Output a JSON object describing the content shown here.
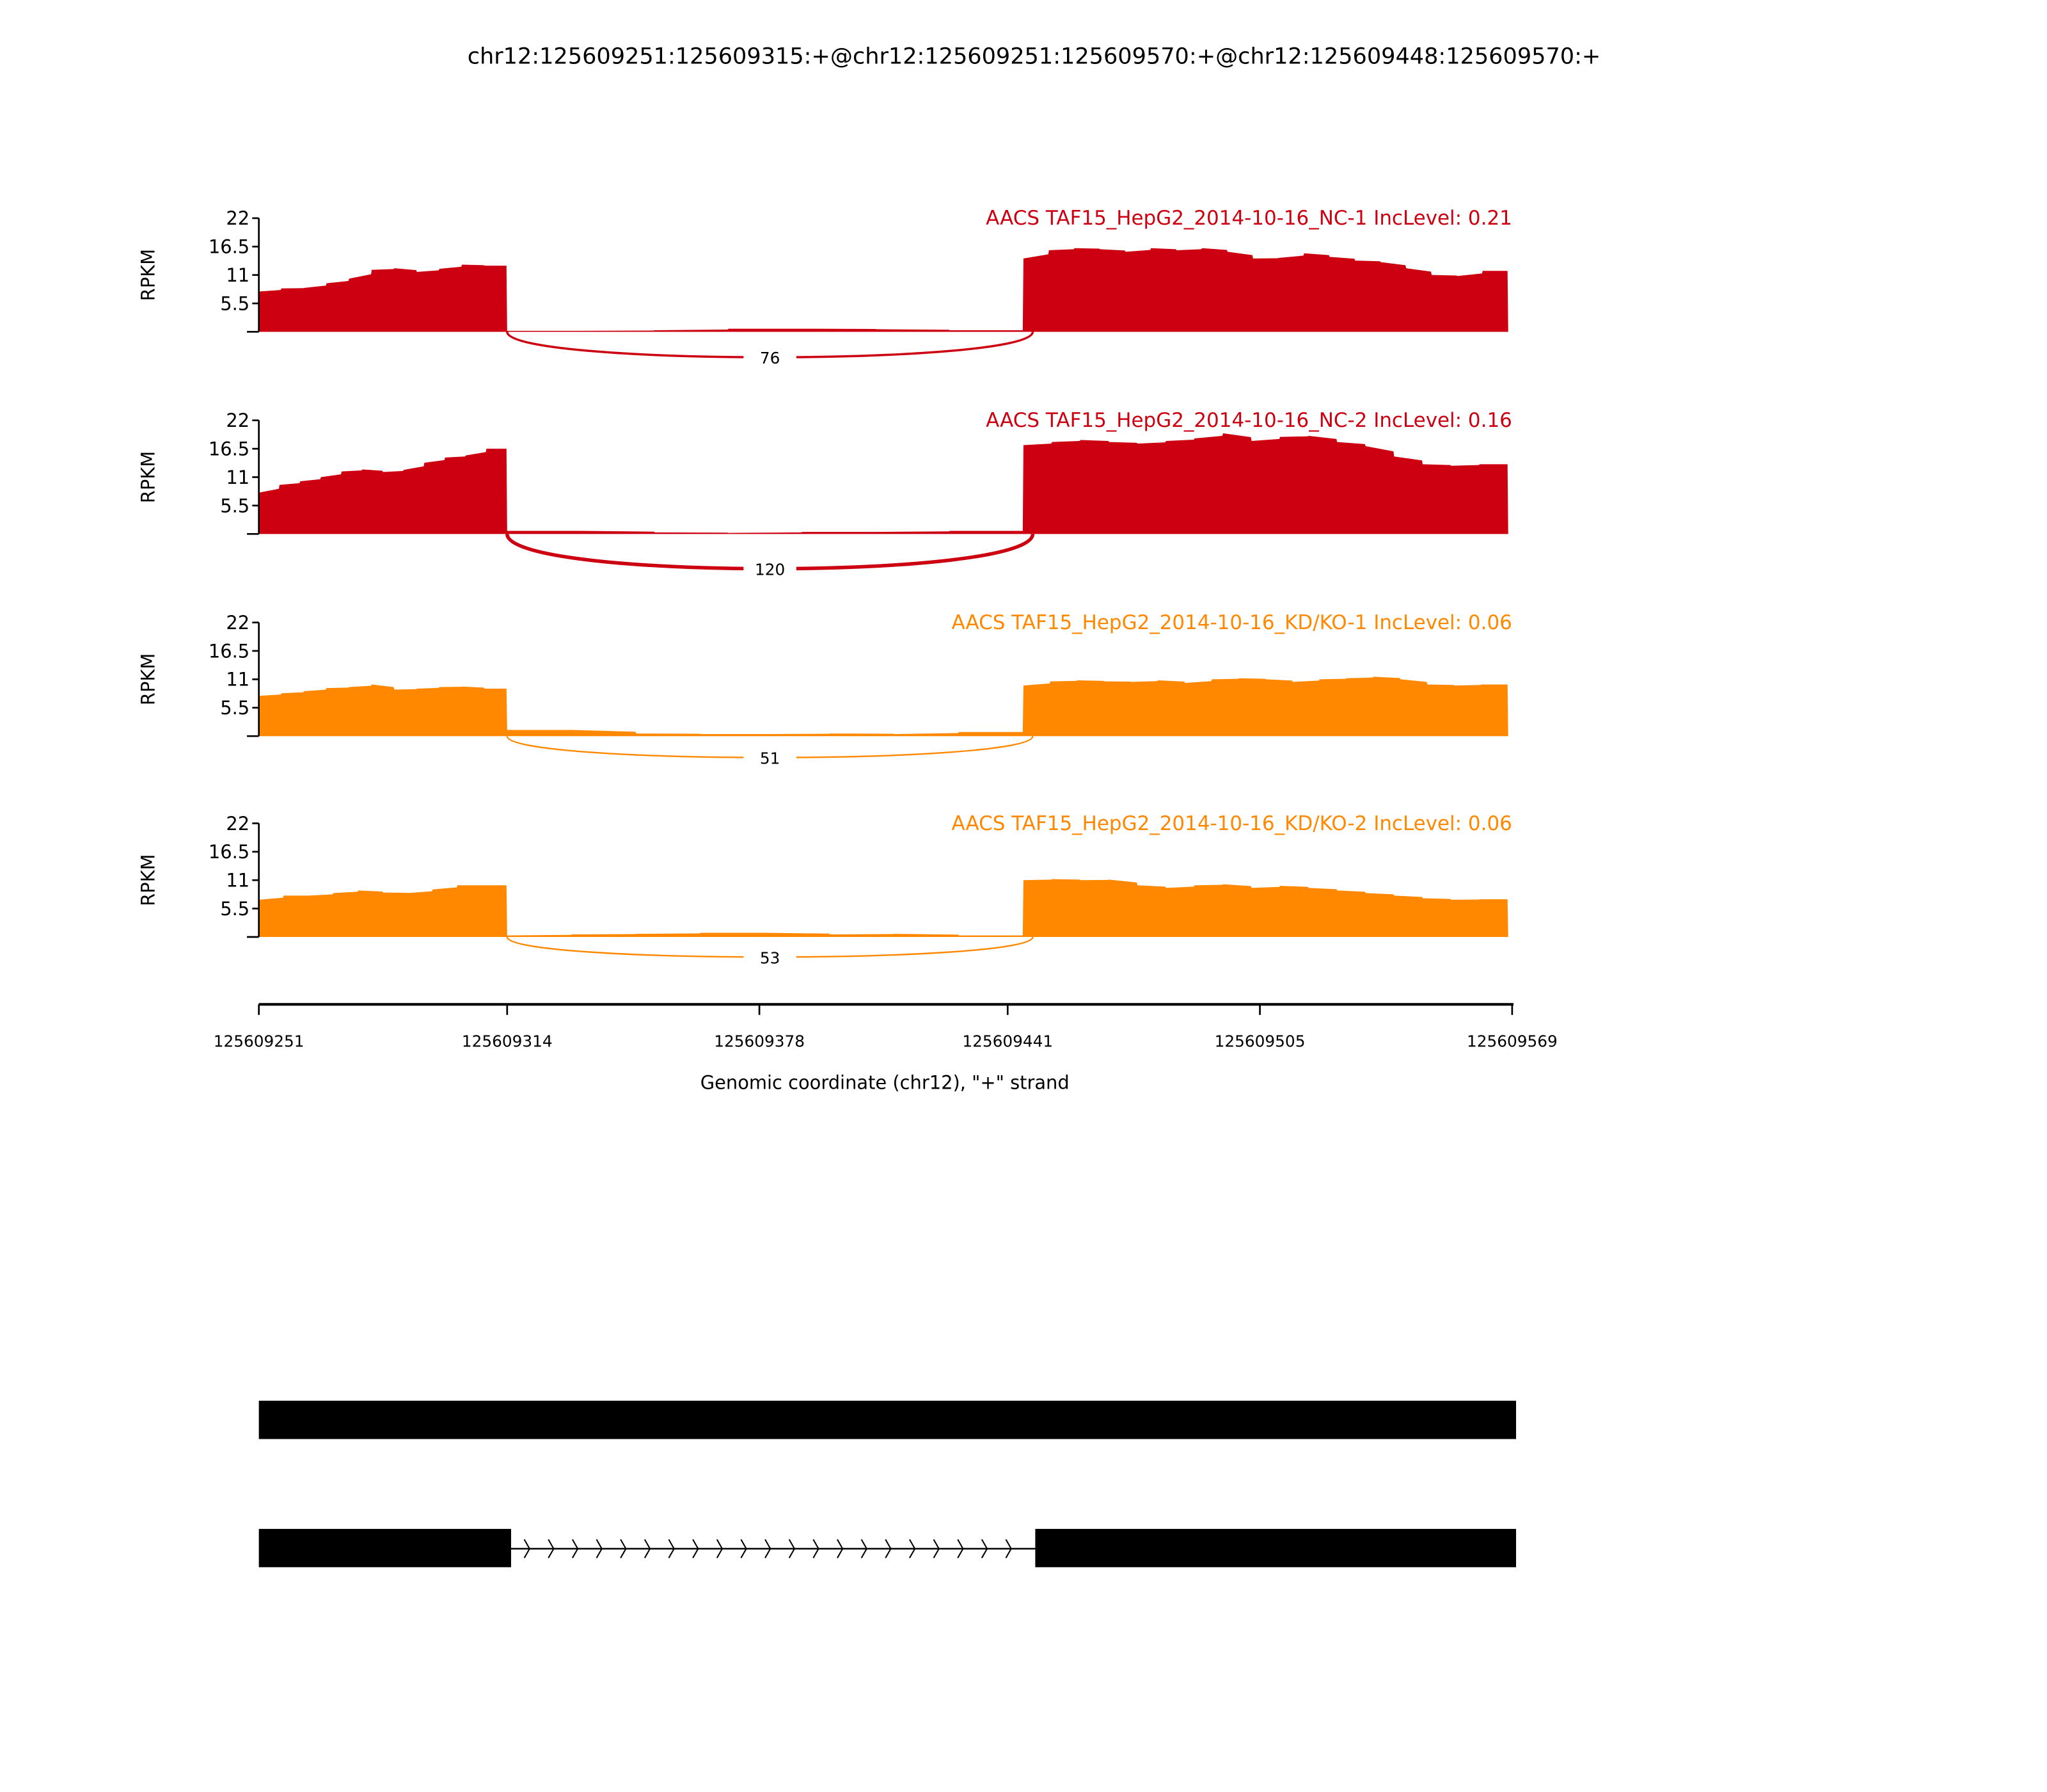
{
  "chart_data": {
    "type": "area",
    "title": "chr12:125609251:125609315:+@chr12:125609251:125609570:+@chr12:125609448:125609570:+",
    "xlabel": "Genomic coordinate (chr12), \"+\" strand",
    "ylabel": "RPKM",
    "xlim": [
      125609251,
      125609569
    ],
    "ylim": [
      0,
      22
    ],
    "yticks": [
      "22",
      "16.5",
      "11",
      "5.5"
    ],
    "ytick_values": [
      22,
      16.5,
      11,
      5.5
    ],
    "xticks": [
      "125609251",
      "125609314",
      "125609378",
      "125609441",
      "125609505",
      "125609569"
    ],
    "xtick_values": [
      125609251,
      125609314,
      125609378,
      125609441,
      125609505,
      125609569
    ],
    "regions": {
      "exon1": [
        125609251,
        125609314
      ],
      "intron": [
        125609314,
        125609445
      ],
      "exon2": [
        125609445,
        125609568
      ]
    },
    "series": [
      {
        "name": "AACS TAF15_HepG2_2014-10-16_NC-1 IncLevel: 0.21",
        "color": "#cc0011",
        "junction_count": "76",
        "exon1": [
          7.8,
          8.4,
          8.5,
          9.4,
          10.3,
          12.0,
          12.3,
          11.6,
          12.2,
          13.0,
          12.8
        ],
        "intron": [
          0.2,
          0.2,
          0.3,
          0.6,
          0.6,
          0.5,
          0.3
        ],
        "exon2": [
          14.2,
          15.8,
          16.2,
          16.0,
          15.5,
          16.2,
          15.8,
          16.2,
          15.5,
          14.2,
          14.3,
          15.2,
          14.5,
          13.8,
          13.5,
          12.3,
          11.0,
          10.8,
          11.8
        ]
      },
      {
        "name": "AACS TAF15_HepG2_2014-10-16_NC-2 IncLevel: 0.16",
        "color": "#cc0011",
        "junction_count": "120",
        "exon1": [
          8.0,
          9.5,
          10.2,
          11.0,
          12.1,
          12.5,
          12.0,
          12.4,
          13.8,
          14.8,
          15.2,
          16.5
        ],
        "intron": [
          0.6,
          0.6,
          0.3,
          0.2,
          0.4,
          0.4,
          0.6
        ],
        "exon2": [
          17.2,
          17.8,
          18.2,
          17.8,
          17.5,
          18.0,
          18.5,
          19.5,
          18.0,
          18.8,
          19.0,
          17.8,
          17.0,
          15.0,
          13.5,
          13.2,
          13.5
        ]
      },
      {
        "name": "AACS TAF15_HepG2_2014-10-16_KD/KO-1 IncLevel: 0.06",
        "color": "#ff8800",
        "junction_count": "51",
        "exon1": [
          7.8,
          8.3,
          8.7,
          9.3,
          9.5,
          10.0,
          9.0,
          9.2,
          9.5,
          9.6,
          9.2
        ],
        "intron": [
          1.2,
          1.2,
          0.5,
          0.4,
          0.4,
          0.5,
          0.4,
          0.8
        ],
        "exon2": [
          9.8,
          10.6,
          10.8,
          10.6,
          10.5,
          10.8,
          10.3,
          11.0,
          11.2,
          11.0,
          10.5,
          11.0,
          11.2,
          11.5,
          11.0,
          10.0,
          9.8,
          10.0
        ]
      },
      {
        "name": "AACS TAF15_HepG2_2014-10-16_KD/KO-2 IncLevel: 0.06",
        "color": "#ff8800",
        "junction_count": "53",
        "exon1": [
          7.2,
          8.0,
          8.0,
          8.5,
          9.0,
          8.6,
          8.5,
          9.2,
          10.0,
          10.0
        ],
        "intron": [
          0.3,
          0.5,
          0.6,
          0.8,
          0.8,
          0.5,
          0.6,
          0.3
        ],
        "exon2": [
          11.0,
          11.2,
          11.0,
          11.1,
          10.0,
          9.5,
          10.0,
          10.2,
          9.5,
          9.9,
          9.5,
          9.0,
          8.5,
          8.0,
          7.5,
          7.2,
          7.3
        ]
      }
    ],
    "gene_models": [
      {
        "exons": [
          [
            125609251,
            125609570
          ]
        ]
      },
      {
        "exons": [
          [
            125609251,
            125609315
          ],
          [
            125609448,
            125609570
          ]
        ],
        "intron_arrows": 21
      }
    ]
  }
}
